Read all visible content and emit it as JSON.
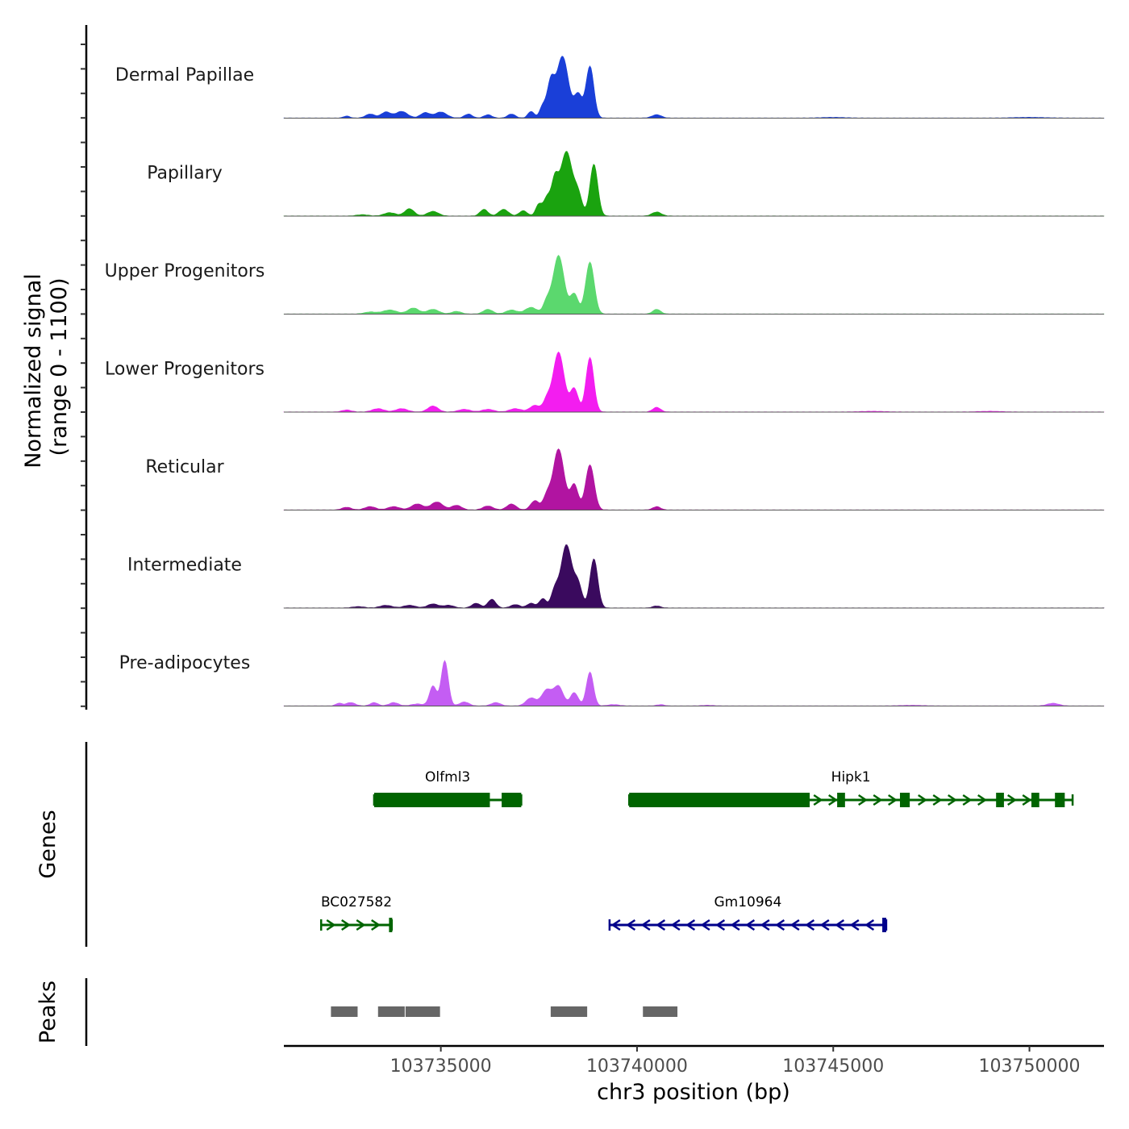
{
  "chart_data": {
    "type": "area",
    "title": "",
    "chromosome": "chr3",
    "xlabel": "chr3 position (bp)",
    "xlim": [
      103731000,
      103751900
    ],
    "x_ticks": [
      103735000,
      103740000,
      103745000,
      103750000
    ],
    "x_tick_labels": [
      "103735000",
      "103740000",
      "103745000",
      "103750000"
    ],
    "coverage": {
      "ylabel_line1": "Normalized signal",
      "ylabel_line2": "(range 0 - 1100)",
      "ylim": [
        0,
        1100
      ],
      "tracks": [
        {
          "name": "Dermal Papillae",
          "color": "#1a3fd8",
          "peaks": [
            [
              103732600,
              0.03,
              80
            ],
            [
              103733200,
              0.06,
              120
            ],
            [
              103733600,
              0.09,
              120
            ],
            [
              103734000,
              0.1,
              150
            ],
            [
              103734600,
              0.08,
              120
            ],
            [
              103735000,
              0.09,
              150
            ],
            [
              103735700,
              0.06,
              100
            ],
            [
              103736200,
              0.05,
              100
            ],
            [
              103736800,
              0.06,
              100
            ],
            [
              103737300,
              0.1,
              80
            ],
            [
              103737600,
              0.18,
              80
            ],
            [
              103737800,
              0.5,
              90
            ],
            [
              103738100,
              0.93,
              150
            ],
            [
              103738500,
              0.35,
              100
            ],
            [
              103738800,
              0.78,
              100
            ],
            [
              103740500,
              0.05,
              120
            ],
            [
              103745000,
              0.01,
              300
            ],
            [
              103750000,
              0.01,
              400
            ]
          ]
        },
        {
          "name": "Papillary",
          "color": "#1aa30f",
          "peaks": [
            [
              103733000,
              0.02,
              150
            ],
            [
              103733700,
              0.05,
              150
            ],
            [
              103734200,
              0.11,
              120
            ],
            [
              103734800,
              0.07,
              140
            ],
            [
              103736100,
              0.1,
              100
            ],
            [
              103736600,
              0.1,
              120
            ],
            [
              103737100,
              0.08,
              100
            ],
            [
              103737500,
              0.18,
              80
            ],
            [
              103737700,
              0.26,
              80
            ],
            [
              103737900,
              0.5,
              90
            ],
            [
              103738200,
              0.97,
              150
            ],
            [
              103738500,
              0.3,
              100
            ],
            [
              103738900,
              0.78,
              100
            ],
            [
              103740500,
              0.06,
              120
            ]
          ]
        },
        {
          "name": "Upper Progenitors",
          "color": "#5bd86e",
          "peaks": [
            [
              103733200,
              0.03,
              150
            ],
            [
              103733700,
              0.06,
              180
            ],
            [
              103734300,
              0.09,
              140
            ],
            [
              103734800,
              0.07,
              150
            ],
            [
              103735400,
              0.04,
              120
            ],
            [
              103736200,
              0.07,
              120
            ],
            [
              103736800,
              0.06,
              140
            ],
            [
              103737300,
              0.1,
              150
            ],
            [
              103737700,
              0.18,
              90
            ],
            [
              103738000,
              0.88,
              140
            ],
            [
              103738400,
              0.3,
              100
            ],
            [
              103738800,
              0.78,
              110
            ],
            [
              103740500,
              0.07,
              100
            ]
          ]
        },
        {
          "name": "Lower Progenitors",
          "color": "#f31df0",
          "peaks": [
            [
              103732600,
              0.03,
              120
            ],
            [
              103733400,
              0.05,
              150
            ],
            [
              103734000,
              0.05,
              150
            ],
            [
              103734800,
              0.09,
              130
            ],
            [
              103735600,
              0.04,
              150
            ],
            [
              103736200,
              0.04,
              150
            ],
            [
              103736900,
              0.05,
              150
            ],
            [
              103737400,
              0.1,
              130
            ],
            [
              103737700,
              0.17,
              90
            ],
            [
              103738000,
              0.9,
              140
            ],
            [
              103738400,
              0.35,
              100
            ],
            [
              103738800,
              0.82,
              100
            ],
            [
              103740500,
              0.07,
              100
            ],
            [
              103746000,
              0.01,
              300
            ],
            [
              103749000,
              0.01,
              300
            ]
          ]
        },
        {
          "name": "Reticular",
          "color": "#b114a1",
          "peaks": [
            [
              103732600,
              0.04,
              120
            ],
            [
              103733200,
              0.05,
              140
            ],
            [
              103733800,
              0.05,
              150
            ],
            [
              103734400,
              0.09,
              150
            ],
            [
              103734900,
              0.12,
              150
            ],
            [
              103735400,
              0.07,
              130
            ],
            [
              103736200,
              0.06,
              130
            ],
            [
              103736800,
              0.09,
              120
            ],
            [
              103737400,
              0.14,
              110
            ],
            [
              103737700,
              0.2,
              90
            ],
            [
              103738000,
              0.92,
              140
            ],
            [
              103738400,
              0.38,
              100
            ],
            [
              103738800,
              0.68,
              110
            ],
            [
              103740500,
              0.05,
              100
            ]
          ]
        },
        {
          "name": "Intermediate",
          "color": "#3a0a5e",
          "peaks": [
            [
              103732900,
              0.02,
              150
            ],
            [
              103733600,
              0.04,
              150
            ],
            [
              103734200,
              0.04,
              150
            ],
            [
              103734800,
              0.06,
              140
            ],
            [
              103735200,
              0.04,
              130
            ],
            [
              103735900,
              0.07,
              110
            ],
            [
              103736300,
              0.13,
              100
            ],
            [
              103736900,
              0.05,
              120
            ],
            [
              103737300,
              0.07,
              100
            ],
            [
              103737600,
              0.14,
              90
            ],
            [
              103737900,
              0.25,
              90
            ],
            [
              103738200,
              0.95,
              140
            ],
            [
              103738500,
              0.34,
              100
            ],
            [
              103738900,
              0.74,
              100
            ],
            [
              103740500,
              0.03,
              100
            ]
          ]
        },
        {
          "name": "Pre-adipocytes",
          "color": "#c45df3",
          "peaks": [
            [
              103732400,
              0.04,
              80
            ],
            [
              103732700,
              0.05,
              120
            ],
            [
              103733300,
              0.05,
              100
            ],
            [
              103733800,
              0.05,
              120
            ],
            [
              103734400,
              0.03,
              150
            ],
            [
              103734800,
              0.3,
              90
            ],
            [
              103735100,
              0.68,
              90
            ],
            [
              103735600,
              0.06,
              120
            ],
            [
              103736400,
              0.05,
              120
            ],
            [
              103737300,
              0.12,
              130
            ],
            [
              103737700,
              0.24,
              130
            ],
            [
              103738000,
              0.29,
              120
            ],
            [
              103738400,
              0.2,
              100
            ],
            [
              103738800,
              0.51,
              90
            ],
            [
              103739400,
              0.02,
              150
            ],
            [
              103740600,
              0.02,
              100
            ],
            [
              103741800,
              0.01,
              150
            ],
            [
              103747000,
              0.01,
              300
            ],
            [
              103750600,
              0.04,
              150
            ]
          ]
        }
      ]
    },
    "genes": {
      "ylabel": "Genes",
      "items": [
        {
          "name": "Olfml3",
          "strand": "-",
          "color": "#006400",
          "row": 0,
          "start": 103733300,
          "end": 103737050,
          "exons": [
            [
              103733300,
              103736250
            ],
            [
              103736550,
              103737050
            ]
          ]
        },
        {
          "name": "Hipk1",
          "strand": "-",
          "color": "#006400",
          "row": 0,
          "start": 103739800,
          "end": 103751100,
          "exons": [
            [
              103739800,
              103744400
            ],
            [
              103745100,
              103745300
            ],
            [
              103746700,
              103746950
            ],
            [
              103749150,
              103749350
            ],
            [
              103750050,
              103750250
            ],
            [
              103750650,
              103750900
            ]
          ]
        },
        {
          "name": "BC027582",
          "strand": "-",
          "color": "#006400",
          "row": 1,
          "start": 103731950,
          "end": 103733750,
          "exons": [
            [
              103733680,
              103733750
            ]
          ]
        },
        {
          "name": "Gm10964",
          "strand": "+",
          "color": "#00008b",
          "row": 1,
          "start": 103739300,
          "end": 103746350,
          "exons": [
            [
              103746250,
              103746350
            ]
          ]
        }
      ]
    },
    "peaks": {
      "ylabel": "Peaks",
      "color": "#666666",
      "regions": [
        [
          103732200,
          103732900
        ],
        [
          103733400,
          103734100
        ],
        [
          103734100,
          103735000
        ],
        [
          103737800,
          103738750
        ],
        [
          103740150,
          103741050
        ]
      ]
    }
  }
}
